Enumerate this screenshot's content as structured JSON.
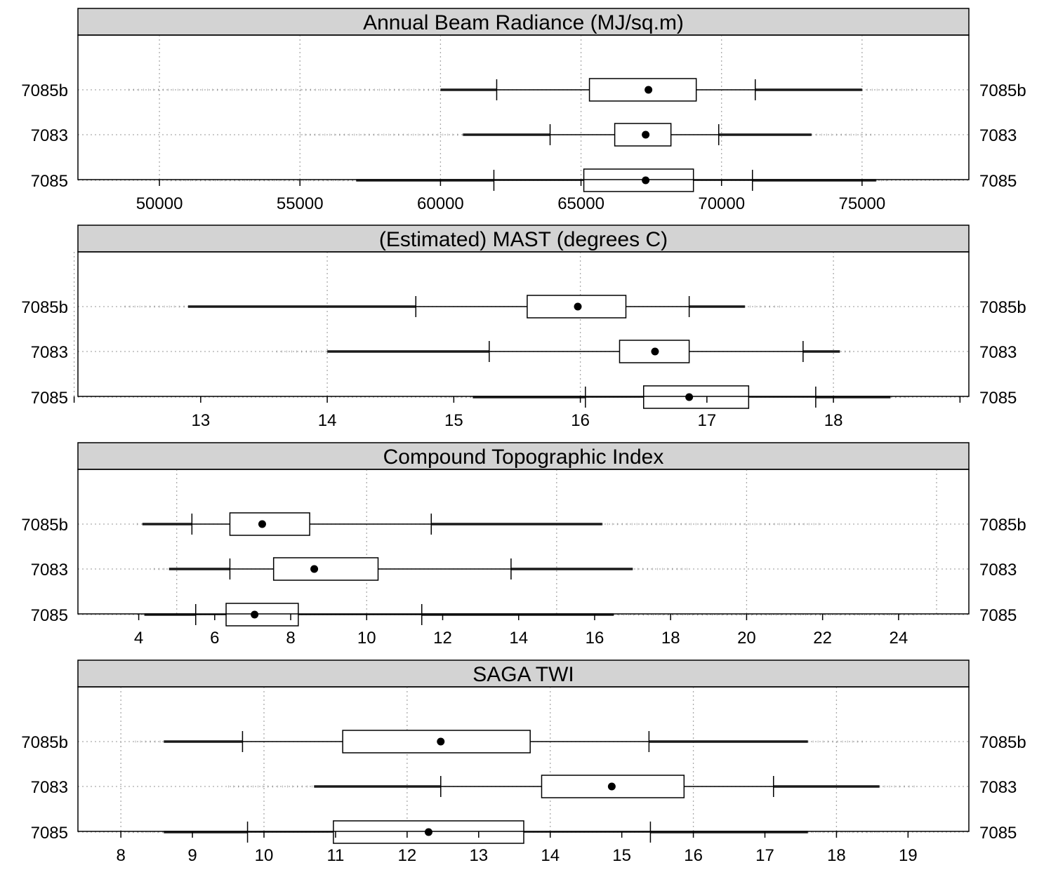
{
  "chart_data": [
    {
      "type": "boxplot",
      "title": "Annual Beam Radiance (MJ/sq.m)",
      "categories": [
        "7085b",
        "7083",
        "7085"
      ],
      "xlim": [
        47100,
        78800
      ],
      "ticks": [
        50000,
        55000,
        60000,
        65000,
        70000,
        75000
      ],
      "tick_labels": [
        "50000",
        "55000",
        "60000",
        "65000",
        "70000",
        "75000"
      ],
      "grid_x": [
        50000,
        55000,
        60000,
        65000,
        70000,
        75000
      ],
      "grid": true,
      "boxes": [
        {
          "category": "7085b",
          "whisker_low": 62000,
          "q1": 65300,
          "median": 67400,
          "q3": 69100,
          "whisker_high": 71200,
          "tail_low": 48900,
          "tail_high": 77000,
          "dense_low": 60000,
          "dense_high": 75000
        },
        {
          "category": "7083",
          "whisker_low": 63900,
          "q1": 66200,
          "median": 67300,
          "q3": 68200,
          "whisker_high": 69900,
          "tail_low": 55000,
          "tail_high": 75400,
          "dense_low": 60800,
          "dense_high": 73200
        },
        {
          "category": "7085",
          "whisker_low": 61900,
          "q1": 65100,
          "median": 67300,
          "q3": 69000,
          "whisker_high": 71100,
          "tail_low": 50400,
          "tail_high": 76000,
          "dense_low": 57000,
          "dense_high": 75500
        }
      ]
    },
    {
      "type": "boxplot",
      "title": "(Estimated) MAST (degrees C)",
      "categories": [
        "7085b",
        "7083",
        "7085"
      ],
      "xlim": [
        12.03,
        19.07
      ],
      "ticks": [
        12,
        13,
        14,
        15,
        16,
        17,
        18,
        19
      ],
      "tick_labels": [
        "",
        "13",
        "14",
        "15",
        "16",
        "17",
        "18",
        ""
      ],
      "grid_x": [
        12,
        14,
        16,
        18
      ],
      "grid": true,
      "boxes": [
        {
          "category": "7085b",
          "whisker_low": 14.7,
          "q1": 15.58,
          "median": 15.98,
          "q3": 16.36,
          "whisker_high": 16.86,
          "tail_low": 12.4,
          "tail_high": 17.6,
          "dense_low": 12.9,
          "dense_high": 17.3
        },
        {
          "category": "7083",
          "whisker_low": 15.28,
          "q1": 16.31,
          "median": 16.59,
          "q3": 16.86,
          "whisker_high": 17.76,
          "tail_low": 13.6,
          "tail_high": 18.15,
          "dense_low": 14.0,
          "dense_high": 18.05
        },
        {
          "category": "7085",
          "whisker_low": 16.04,
          "q1": 16.5,
          "median": 16.86,
          "q3": 17.33,
          "whisker_high": 17.86,
          "tail_low": 14.9,
          "tail_high": 18.6,
          "dense_low": 15.15,
          "dense_high": 18.45
        }
      ]
    },
    {
      "type": "boxplot",
      "title": "Compound Topographic Index",
      "categories": [
        "7085b",
        "7083",
        "7085"
      ],
      "xlim": [
        2.4,
        25.85
      ],
      "ticks": [
        4,
        6,
        8,
        10,
        12,
        14,
        16,
        18,
        20,
        22,
        24
      ],
      "tick_labels": [
        "4",
        "6",
        "8",
        "10",
        "12",
        "14",
        "16",
        "18",
        "20",
        "22",
        "24"
      ],
      "grid_x": [
        5,
        10,
        15,
        20,
        25
      ],
      "grid": true,
      "boxes": [
        {
          "category": "7085b",
          "whisker_low": 5.4,
          "q1": 6.4,
          "median": 7.25,
          "q3": 8.5,
          "whisker_high": 11.7,
          "tail_low": 3.95,
          "tail_high": 22.0,
          "dense_low": 4.1,
          "dense_high": 16.2
        },
        {
          "category": "7083",
          "whisker_low": 6.4,
          "q1": 7.55,
          "median": 8.62,
          "q3": 10.3,
          "whisker_high": 13.8,
          "tail_low": 4.4,
          "tail_high": 18.5,
          "dense_low": 4.8,
          "dense_high": 17.0
        },
        {
          "category": "7085",
          "whisker_low": 5.5,
          "q1": 6.3,
          "median": 7.05,
          "q3": 8.2,
          "whisker_high": 11.45,
          "tail_low": 4.0,
          "tail_high": 24.5,
          "dense_low": 4.15,
          "dense_high": 16.5
        }
      ]
    },
    {
      "type": "boxplot",
      "title": "SAGA TWI",
      "categories": [
        "7085b",
        "7083",
        "7085"
      ],
      "xlim": [
        7.4,
        19.85
      ],
      "ticks": [
        8,
        9,
        10,
        11,
        12,
        13,
        14,
        15,
        16,
        17,
        18,
        19
      ],
      "tick_labels": [
        "8",
        "9",
        "10",
        "11",
        "12",
        "13",
        "14",
        "15",
        "16",
        "17",
        "18",
        "19"
      ],
      "grid_x": [
        8,
        10,
        12,
        14,
        16,
        18
      ],
      "grid": true,
      "boxes": [
        {
          "category": "7085b",
          "whisker_low": 9.7,
          "q1": 11.1,
          "median": 12.47,
          "q3": 13.72,
          "whisker_high": 15.38,
          "tail_low": 8.2,
          "tail_high": 18.4,
          "dense_low": 8.6,
          "dense_high": 17.6
        },
        {
          "category": "7083",
          "whisker_low": 12.47,
          "q1": 13.88,
          "median": 14.86,
          "q3": 15.87,
          "whisker_high": 17.12,
          "tail_low": 9.5,
          "tail_high": 19.1,
          "dense_low": 10.7,
          "dense_high": 18.6
        },
        {
          "category": "7085",
          "whisker_low": 9.77,
          "q1": 10.97,
          "median": 12.3,
          "q3": 13.63,
          "whisker_high": 15.4,
          "tail_low": 8.1,
          "tail_high": 18.6,
          "dense_low": 8.6,
          "dense_high": 17.6
        }
      ]
    }
  ]
}
